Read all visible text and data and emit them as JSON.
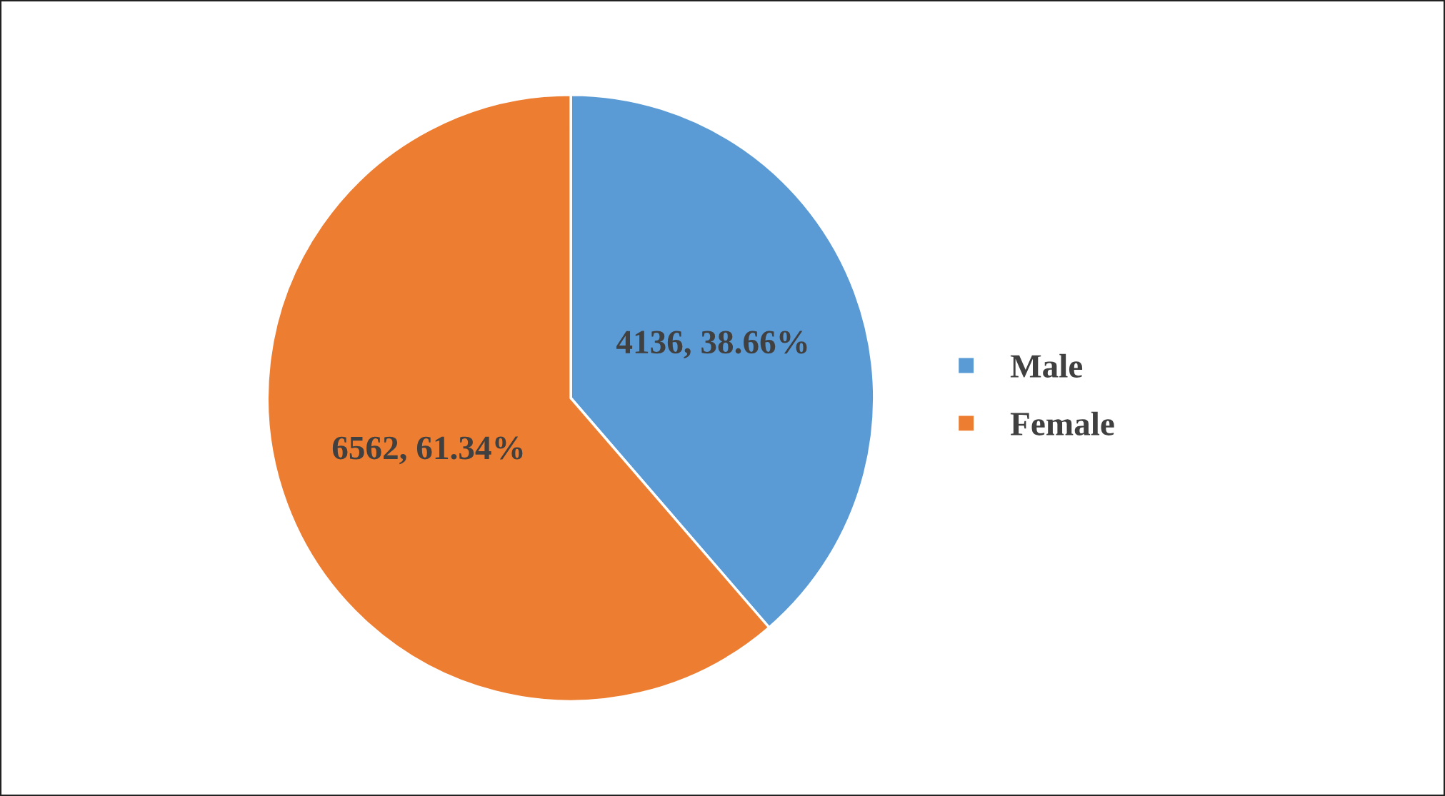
{
  "chart_data": {
    "type": "pie",
    "categories": [
      "Male",
      "Female"
    ],
    "values": [
      4136,
      6562
    ],
    "colors": [
      "#5b9bd5",
      "#ed7d31"
    ],
    "value_labels": [
      "4136, 38.66%",
      "6562, 61.34%"
    ],
    "legend": "right"
  }
}
